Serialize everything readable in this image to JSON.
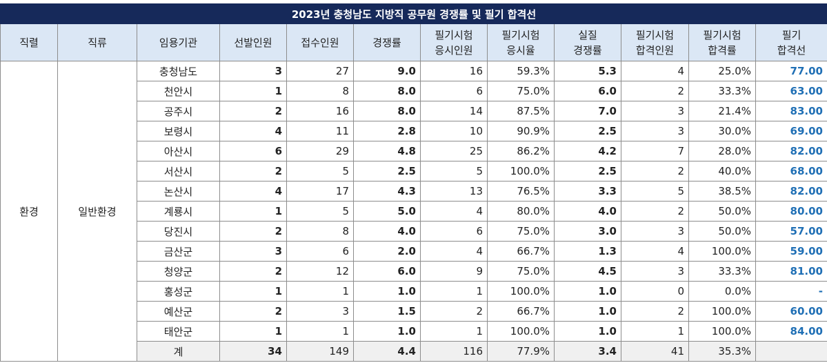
{
  "title": "2023년 충청남도 지방직 공무원 경쟁률 및 필기 합격선",
  "headers": {
    "jikryeol": "직렬",
    "jikryu": "직류",
    "agency": "임용기관",
    "selected": "선발인원",
    "applied": "접수인원",
    "ratio": "경쟁률",
    "exam_takers_1": "필기시험",
    "exam_takers_2": "응시인원",
    "exam_rate_1": "필기시험",
    "exam_rate_2": "응시율",
    "real_ratio_1": "실질",
    "real_ratio_2": "경쟁률",
    "passers_1": "필기시험",
    "passers_2": "합격인원",
    "pass_rate_1": "필기시험",
    "pass_rate_2": "합격률",
    "cutline_1": "필기",
    "cutline_2": "합격선"
  },
  "jikryeol": "환경",
  "jikryu": "일반환경",
  "rows": [
    {
      "agency": "충청남도",
      "selected": "3",
      "applied": "27",
      "ratio": "9.0",
      "takers": "16",
      "take_rate": "59.3%",
      "real_ratio": "5.3",
      "passers": "4",
      "pass_rate": "25.0%",
      "cutline": "77.00"
    },
    {
      "agency": "천안시",
      "selected": "1",
      "applied": "8",
      "ratio": "8.0",
      "takers": "6",
      "take_rate": "75.0%",
      "real_ratio": "6.0",
      "passers": "2",
      "pass_rate": "33.3%",
      "cutline": "63.00"
    },
    {
      "agency": "공주시",
      "selected": "2",
      "applied": "16",
      "ratio": "8.0",
      "takers": "14",
      "take_rate": "87.5%",
      "real_ratio": "7.0",
      "passers": "3",
      "pass_rate": "21.4%",
      "cutline": "83.00"
    },
    {
      "agency": "보령시",
      "selected": "4",
      "applied": "11",
      "ratio": "2.8",
      "takers": "10",
      "take_rate": "90.9%",
      "real_ratio": "2.5",
      "passers": "3",
      "pass_rate": "30.0%",
      "cutline": "69.00"
    },
    {
      "agency": "아산시",
      "selected": "6",
      "applied": "29",
      "ratio": "4.8",
      "takers": "25",
      "take_rate": "86.2%",
      "real_ratio": "4.2",
      "passers": "7",
      "pass_rate": "28.0%",
      "cutline": "82.00"
    },
    {
      "agency": "서산시",
      "selected": "2",
      "applied": "5",
      "ratio": "2.5",
      "takers": "5",
      "take_rate": "100.0%",
      "real_ratio": "2.5",
      "passers": "2",
      "pass_rate": "40.0%",
      "cutline": "68.00"
    },
    {
      "agency": "논산시",
      "selected": "4",
      "applied": "17",
      "ratio": "4.3",
      "takers": "13",
      "take_rate": "76.5%",
      "real_ratio": "3.3",
      "passers": "5",
      "pass_rate": "38.5%",
      "cutline": "82.00"
    },
    {
      "agency": "계룡시",
      "selected": "1",
      "applied": "5",
      "ratio": "5.0",
      "takers": "4",
      "take_rate": "80.0%",
      "real_ratio": "4.0",
      "passers": "2",
      "pass_rate": "50.0%",
      "cutline": "80.00"
    },
    {
      "agency": "당진시",
      "selected": "2",
      "applied": "8",
      "ratio": "4.0",
      "takers": "6",
      "take_rate": "75.0%",
      "real_ratio": "3.0",
      "passers": "3",
      "pass_rate": "50.0%",
      "cutline": "57.00"
    },
    {
      "agency": "금산군",
      "selected": "3",
      "applied": "6",
      "ratio": "2.0",
      "takers": "4",
      "take_rate": "66.7%",
      "real_ratio": "1.3",
      "passers": "4",
      "pass_rate": "100.0%",
      "cutline": "59.00"
    },
    {
      "agency": "청양군",
      "selected": "2",
      "applied": "12",
      "ratio": "6.0",
      "takers": "9",
      "take_rate": "75.0%",
      "real_ratio": "4.5",
      "passers": "3",
      "pass_rate": "33.3%",
      "cutline": "81.00"
    },
    {
      "agency": "홍성군",
      "selected": "1",
      "applied": "1",
      "ratio": "1.0",
      "takers": "1",
      "take_rate": "100.0%",
      "real_ratio": "1.0",
      "passers": "0",
      "pass_rate": "0.0%",
      "cutline": "-"
    },
    {
      "agency": "예산군",
      "selected": "2",
      "applied": "3",
      "ratio": "1.5",
      "takers": "2",
      "take_rate": "66.7%",
      "real_ratio": "1.0",
      "passers": "2",
      "pass_rate": "100.0%",
      "cutline": "60.00"
    },
    {
      "agency": "태안군",
      "selected": "1",
      "applied": "1",
      "ratio": "1.0",
      "takers": "1",
      "take_rate": "100.0%",
      "real_ratio": "1.0",
      "passers": "1",
      "pass_rate": "100.0%",
      "cutline": "84.00"
    }
  ],
  "total": {
    "agency": "계",
    "selected": "34",
    "applied": "149",
    "ratio": "4.4",
    "takers": "116",
    "take_rate": "77.9%",
    "real_ratio": "3.4",
    "passers": "41",
    "pass_rate": "35.3%",
    "cutline": ""
  }
}
